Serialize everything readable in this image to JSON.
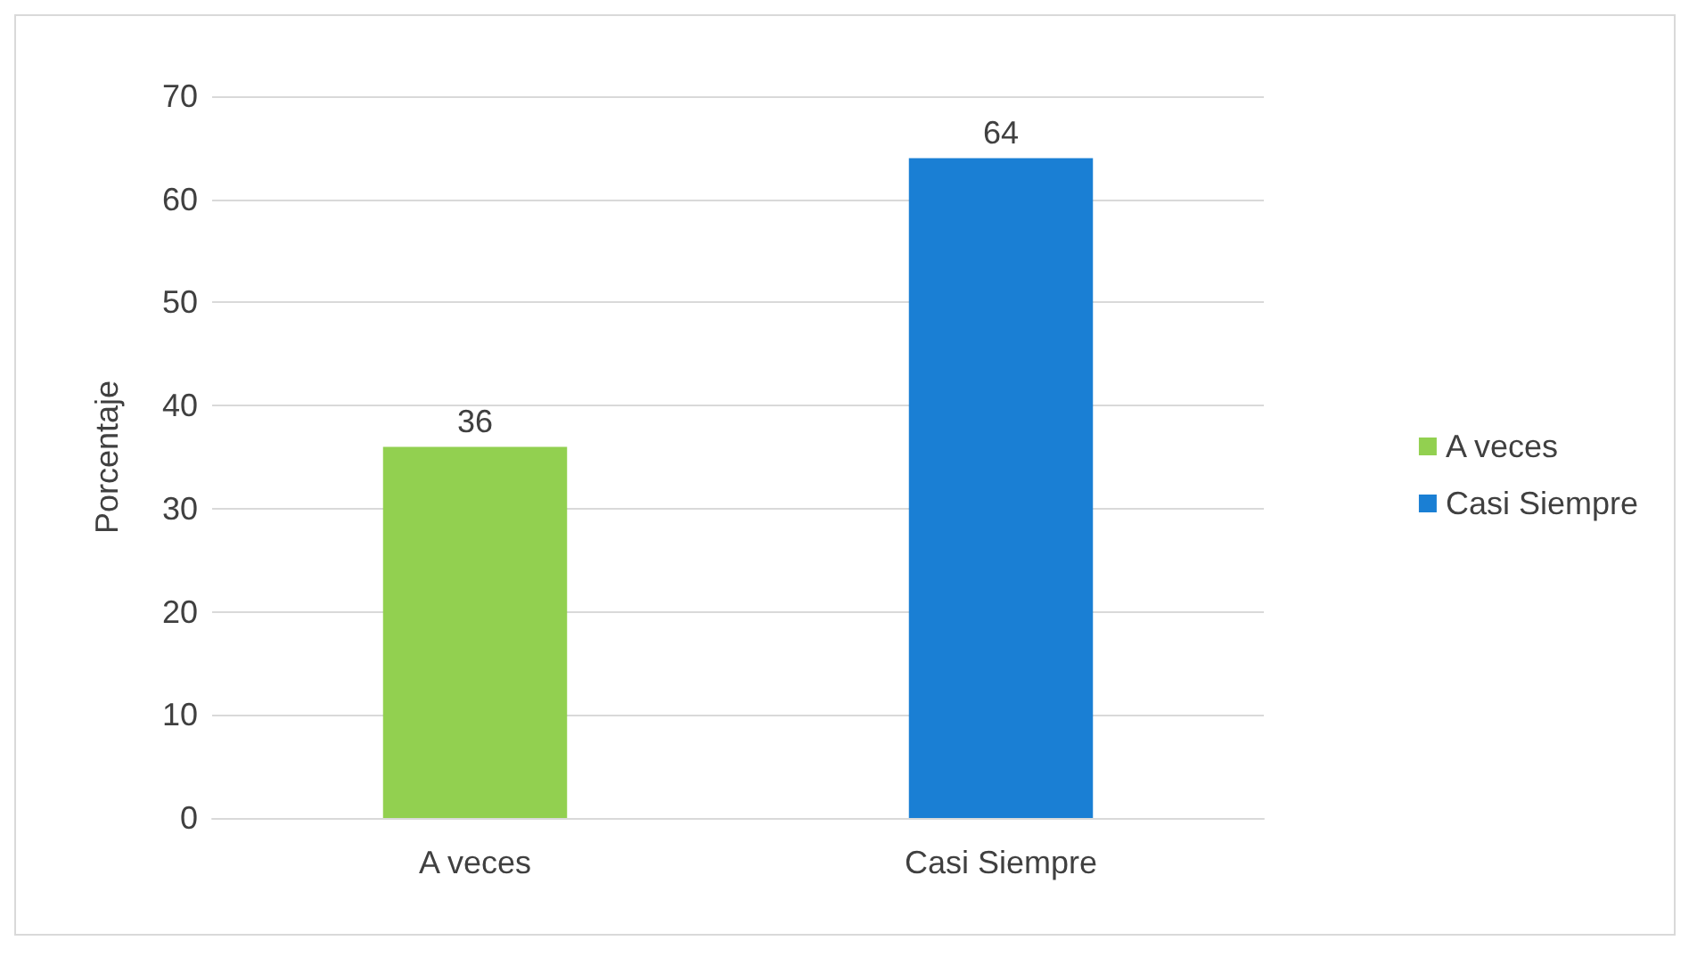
{
  "chart_data": {
    "type": "bar",
    "ylabel": "Porcentaje",
    "categories": [
      "A veces",
      "Casi Siempre"
    ],
    "series": [
      {
        "name": "A veces",
        "color": "#92d050",
        "values": [
          36,
          null
        ]
      },
      {
        "name": "Casi Siempre",
        "color": "#1a7fd4",
        "values": [
          null,
          64
        ]
      }
    ],
    "stacked": true,
    "ylim": [
      0,
      70
    ],
    "yticks": [
      0,
      10,
      20,
      30,
      40,
      50,
      60,
      70
    ],
    "grid": "y",
    "legend": "right",
    "data_labels": true
  }
}
